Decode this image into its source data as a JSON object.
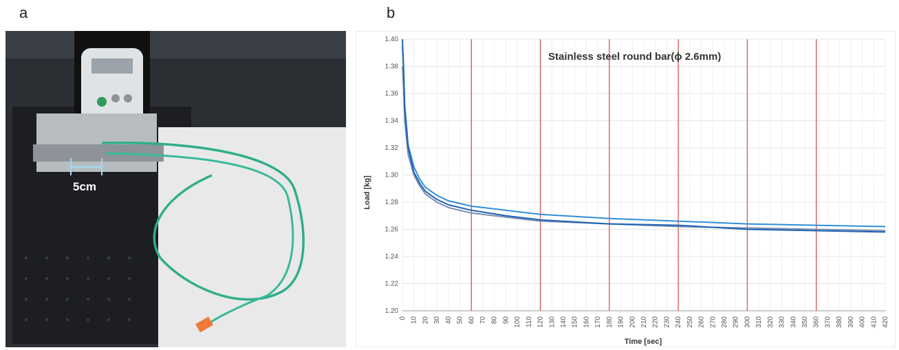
{
  "panels": {
    "a": "a",
    "b": "b"
  },
  "photo": {
    "scale_label": "5cm"
  },
  "chart_data": {
    "type": "line",
    "title": "Stainless steel round bar(ϕ 2.6mm)",
    "xlabel": "Time [sec]",
    "ylabel": "Load [kg]",
    "xlim": [
      0,
      420
    ],
    "ylim": [
      1.2,
      1.4
    ],
    "xticks": [
      0,
      10,
      20,
      30,
      40,
      50,
      60,
      70,
      80,
      90,
      100,
      110,
      120,
      130,
      140,
      150,
      160,
      170,
      180,
      190,
      200,
      210,
      220,
      230,
      240,
      250,
      260,
      270,
      280,
      290,
      300,
      310,
      320,
      330,
      340,
      350,
      360,
      370,
      380,
      390,
      400,
      410,
      420
    ],
    "yticks": [
      "1.20",
      "1.22",
      "1.24",
      "1.26",
      "1.28",
      "1.30",
      "1.32",
      "1.34",
      "1.36",
      "1.38",
      "1.40"
    ],
    "vertical_markers": [
      60,
      120,
      180,
      240,
      300,
      360
    ],
    "grid": true,
    "colors": {
      "series_1": "#1f63b5",
      "series_2": "#2f8ed8",
      "series_3": "#7a8fb0",
      "markers": "#d9534f"
    },
    "series": [
      {
        "x": [
          0,
          1,
          2,
          5,
          10,
          15,
          20,
          30,
          40,
          60,
          90,
          120,
          180,
          240,
          300,
          360,
          420
        ],
        "values": [
          1.4,
          1.38,
          1.35,
          1.32,
          1.302,
          1.294,
          1.288,
          1.282,
          1.278,
          1.274,
          1.27,
          1.267,
          1.264,
          1.263,
          1.26,
          1.259,
          1.258
        ]
      },
      {
        "x": [
          0,
          1,
          2,
          5,
          10,
          15,
          20,
          30,
          40,
          60,
          90,
          120,
          180,
          240,
          300,
          360,
          420
        ],
        "values": [
          1.395,
          1.378,
          1.352,
          1.322,
          1.306,
          1.297,
          1.291,
          1.285,
          1.281,
          1.277,
          1.274,
          1.271,
          1.268,
          1.266,
          1.264,
          1.263,
          1.262
        ]
      },
      {
        "x": [
          0,
          1,
          2,
          5,
          10,
          15,
          20,
          30,
          40,
          60,
          90,
          120,
          180,
          240,
          300,
          360,
          420
        ],
        "values": [
          1.38,
          1.365,
          1.34,
          1.315,
          1.3,
          1.292,
          1.286,
          1.28,
          1.276,
          1.272,
          1.269,
          1.266,
          1.264,
          1.262,
          1.261,
          1.26,
          1.259
        ]
      }
    ]
  }
}
